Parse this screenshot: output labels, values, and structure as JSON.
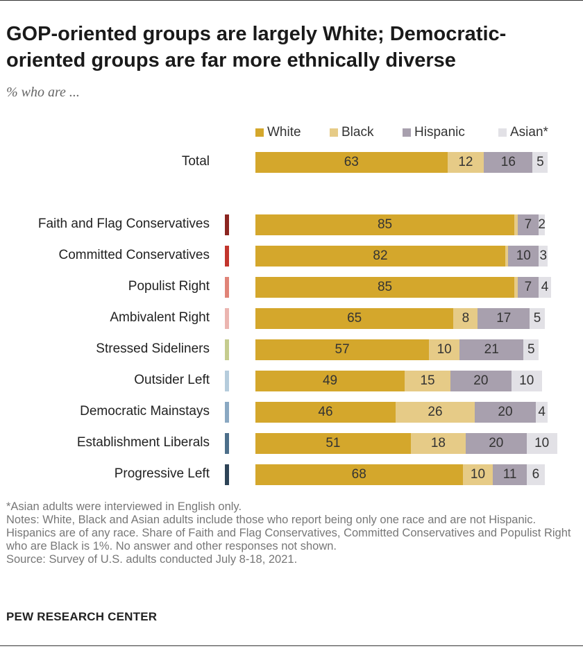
{
  "header": {
    "title": "GOP-oriented groups are largely White; Democratic-oriented groups are far more ethnically diverse",
    "subtitle": "% who are ..."
  },
  "chart_data": {
    "type": "bar",
    "orientation": "horizontal",
    "stacked": true,
    "categories": [
      "Total",
      "Faith and Flag Conservatives",
      "Committed Conservatives",
      "Populist Right",
      "Ambivalent Right",
      "Stressed Sideliners",
      "Outsider Left",
      "Democratic Mainstays",
      "Establishment Liberals",
      "Progressive Left"
    ],
    "category_marker_colors": [
      null,
      "#8b2520",
      "#c2352d",
      "#e08478",
      "#ebb5b0",
      "#c5cc8e",
      "#b5ccdc",
      "#8aa8c2",
      "#4d6f8a",
      "#2e4457"
    ],
    "series": [
      {
        "name": "White",
        "color": "#d4a72c",
        "values": [
          63,
          85,
          82,
          85,
          65,
          57,
          49,
          46,
          51,
          68
        ],
        "labels": [
          "63",
          "85",
          "82",
          "85",
          "65",
          "57",
          "49",
          "46",
          "51",
          "68"
        ]
      },
      {
        "name": "Black",
        "color": "#e6cb87",
        "values": [
          12,
          1,
          1,
          1,
          8,
          10,
          15,
          26,
          18,
          10
        ],
        "labels": [
          "12",
          "",
          "",
          "",
          "8",
          "10",
          "15",
          "26",
          "18",
          "10"
        ]
      },
      {
        "name": "Hispanic",
        "color": "#a8a0ae",
        "values": [
          16,
          7,
          10,
          7,
          17,
          21,
          20,
          20,
          20,
          11
        ],
        "labels": [
          "16",
          "7",
          "10",
          "7",
          "17",
          "21",
          "20",
          "20",
          "20",
          "11"
        ]
      },
      {
        "name": "Asian*",
        "color": "#e2e1e6",
        "values": [
          5,
          2,
          3,
          4,
          5,
          5,
          10,
          4,
          10,
          6
        ],
        "labels": [
          "5",
          "2",
          "3",
          "4",
          "5",
          "5",
          "10",
          "4",
          "10",
          "6"
        ]
      }
    ],
    "legend_position": "top"
  },
  "notes": {
    "asterisk": "*Asian adults were interviewed in English only.",
    "notes": "Notes: White, Black and Asian adults include those who report being only one race and are not Hispanic. Hispanics are of any race. Share of Faith and Flag Conservatives, Committed Conservatives and Populist Right who are Black is 1%. No answer and other responses not shown.",
    "source": "Source: Survey of U.S. adults conducted July 8-18, 2021."
  },
  "footer": {
    "org": "PEW RESEARCH CENTER"
  }
}
